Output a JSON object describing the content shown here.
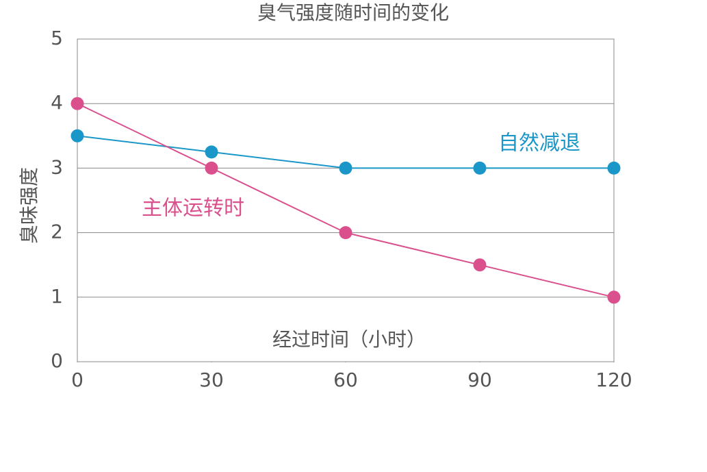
{
  "chart_data": {
    "type": "line",
    "title": "臭气强度随时间的变化",
    "x_label": "经过时间（小时）",
    "y_label": "臭味强度",
    "x": [
      0,
      30,
      60,
      90,
      120
    ],
    "series": [
      {
        "name": "自然减退",
        "color": "#1a96c8",
        "values": [
          3.5,
          3.25,
          3,
          3,
          3
        ]
      },
      {
        "name": "主体运转时",
        "color": "#d9508c",
        "values": [
          4,
          3,
          2,
          1.5,
          1
        ]
      }
    ],
    "xlim": [
      0,
      120
    ],
    "xticks": [
      0,
      30,
      60,
      90,
      120
    ],
    "ylim": [
      0,
      5
    ],
    "yticks": [
      0,
      1,
      2,
      3,
      4,
      5
    ],
    "grid": true
  }
}
